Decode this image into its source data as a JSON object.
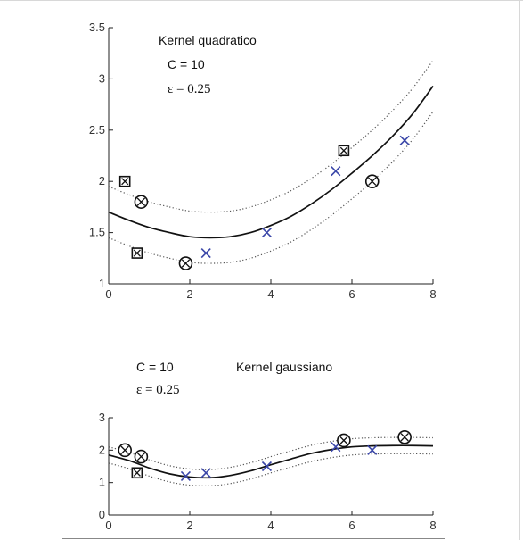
{
  "chart_data": [
    {
      "type": "scatter",
      "title": "",
      "annotations": [
        "Kernel quadratico",
        "C = 10",
        "ε = 0.25"
      ],
      "xlabel": "",
      "ylabel": "",
      "xlim": [
        0,
        8
      ],
      "ylim": [
        1,
        3.5
      ],
      "xticks": [
        "0",
        "2",
        "4",
        "6",
        "8"
      ],
      "yticks": [
        "1",
        "1.5",
        "2",
        "2.5",
        "3",
        "3.5"
      ],
      "epsilon": 0.25,
      "regression_curve": {
        "style": "solid",
        "color": "#111111",
        "x": [
          0,
          0.5,
          1,
          1.5,
          2,
          2.5,
          3,
          3.5,
          4,
          4.5,
          5,
          5.5,
          6,
          6.5,
          7,
          7.5,
          8
        ],
        "y": [
          1.7,
          1.62,
          1.55,
          1.5,
          1.46,
          1.45,
          1.46,
          1.5,
          1.57,
          1.66,
          1.78,
          1.92,
          2.08,
          2.25,
          2.44,
          2.66,
          2.93
        ]
      },
      "epsilon_tube": {
        "style": "dotted",
        "color": "#555555",
        "offset": 0.25
      },
      "series": [
        {
          "marker": "x",
          "color": "#3a46a8",
          "points": [
            [
              2.4,
              1.3
            ],
            [
              3.9,
              1.5
            ],
            [
              5.6,
              2.1
            ],
            [
              7.3,
              2.4
            ]
          ]
        },
        {
          "marker": "circled-x",
          "color": "#111111",
          "points": [
            [
              0.8,
              1.8
            ],
            [
              1.9,
              1.2
            ],
            [
              6.5,
              2.0
            ]
          ]
        },
        {
          "marker": "boxed-x",
          "color": "#111111",
          "points": [
            [
              0.4,
              2.0
            ],
            [
              0.7,
              1.3
            ],
            [
              5.8,
              2.3
            ]
          ]
        }
      ]
    },
    {
      "type": "scatter",
      "title": "",
      "annotations": [
        "C = 10",
        "ε = 0.25",
        "Kernel gaussiano"
      ],
      "xlabel": "",
      "ylabel": "",
      "xlim": [
        0,
        8
      ],
      "ylim": [
        0,
        3
      ],
      "xticks": [
        "0",
        "2",
        "4",
        "6",
        "8"
      ],
      "yticks": [
        "0",
        "1",
        "2",
        "3"
      ],
      "epsilon": 0.25,
      "regression_curve": {
        "style": "solid",
        "color": "#111111",
        "x": [
          0,
          0.5,
          1,
          1.5,
          2,
          2.5,
          3,
          3.5,
          4,
          4.5,
          5,
          5.5,
          6,
          6.5,
          7,
          7.5,
          8
        ],
        "y": [
          1.85,
          1.68,
          1.45,
          1.27,
          1.17,
          1.15,
          1.22,
          1.36,
          1.55,
          1.73,
          1.9,
          2.02,
          2.1,
          2.13,
          2.14,
          2.14,
          2.13
        ]
      },
      "epsilon_tube": {
        "style": "dotted",
        "color": "#555555",
        "offset": 0.25
      },
      "series": [
        {
          "marker": "x",
          "color": "#3a46a8",
          "points": [
            [
              1.9,
              1.2
            ],
            [
              2.4,
              1.3
            ],
            [
              3.9,
              1.5
            ],
            [
              5.6,
              2.1
            ],
            [
              6.5,
              2.0
            ]
          ]
        },
        {
          "marker": "circled-x",
          "color": "#111111",
          "points": [
            [
              0.4,
              2.0
            ],
            [
              0.8,
              1.8
            ],
            [
              5.8,
              2.3
            ],
            [
              7.3,
              2.4
            ]
          ]
        },
        {
          "marker": "boxed-x",
          "color": "#111111",
          "points": [
            [
              0.7,
              1.3
            ]
          ]
        }
      ]
    }
  ]
}
